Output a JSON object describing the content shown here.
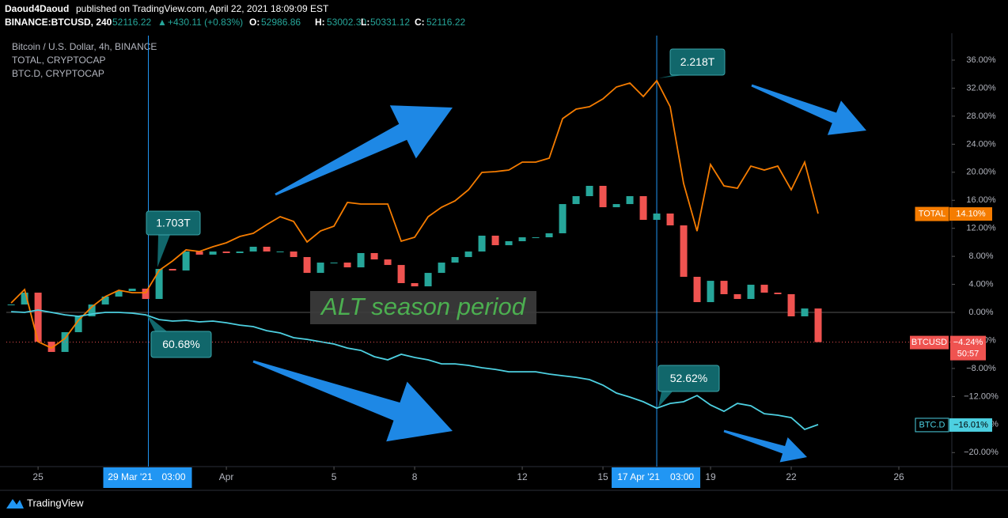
{
  "header": {
    "author": "Daoud4Daoud",
    "published": "published on TradingView.com, April 22, 2021 18:09:09 EST",
    "symbol": "BINANCE:BTCUSD, 240",
    "last": "52116.22",
    "arrow": "▲",
    "change": "+430.11 (+0.83%)",
    "ohlc": [
      {
        "label": "O:",
        "value": "52986.86"
      },
      {
        "label": "H:",
        "value": "53002.30"
      },
      {
        "label": "L:",
        "value": "50331.12"
      },
      {
        "label": "C:",
        "value": "52116.22"
      }
    ]
  },
  "footer": {
    "brand": "TradingView"
  },
  "chart_data": {
    "type": "line",
    "legend": [
      "Bitcoin / U.S. Dollar, 4h, BINANCE",
      "TOTAL, CRYPTOCAP",
      "BTC.D, CRYPTOCAP"
    ],
    "x": [
      -1,
      -0.5,
      0,
      0.5,
      1,
      1.5,
      2,
      2.5,
      3,
      3.5,
      4,
      4.5,
      5,
      5.5,
      6,
      6.5,
      7,
      7.5,
      8,
      8.5,
      9,
      9.5,
      10,
      10.5,
      11,
      11.5,
      12,
      12.5,
      13,
      13.5,
      14,
      14.5,
      15,
      15.5,
      16,
      16.5,
      17,
      17.5,
      18,
      18.5,
      19,
      19.5,
      20,
      20.5,
      21,
      21.5,
      22,
      22.5,
      23,
      23.5,
      24,
      24.5,
      25,
      25.5,
      26,
      26.5,
      27,
      27.5,
      28,
      28.5,
      29
    ],
    "xlim": [
      -1.18,
      33.97
    ],
    "xticks": [
      {
        "value": 0,
        "label": "25"
      },
      {
        "value": 7,
        "label": "Apr"
      },
      {
        "value": 11,
        "label": "5"
      },
      {
        "value": 14,
        "label": "8"
      },
      {
        "value": 18,
        "label": "12"
      },
      {
        "value": 21,
        "label": "15"
      },
      {
        "value": 25,
        "label": "19"
      },
      {
        "value": 28,
        "label": "22"
      },
      {
        "value": 32,
        "label": "26"
      }
    ],
    "ylim": [
      -22,
      39.5
    ],
    "yticks": [
      {
        "value": 36,
        "label": "36.00%"
      },
      {
        "value": 32,
        "label": "32.00%"
      },
      {
        "value": 28,
        "label": "28.00%"
      },
      {
        "value": 24,
        "label": "24.00%"
      },
      {
        "value": 20,
        "label": "20.00%"
      },
      {
        "value": 16,
        "label": "16.00%"
      },
      {
        "value": 12,
        "label": "12.00%"
      },
      {
        "value": 8,
        "label": "8.00%"
      },
      {
        "value": 4,
        "label": "4.00%"
      },
      {
        "value": 0,
        "label": "0.00%"
      },
      {
        "value": -4,
        "label": "−4.00%"
      },
      {
        "value": -8,
        "label": "−8.00%"
      },
      {
        "value": -12,
        "label": "−12.00%"
      },
      {
        "value": -16,
        "label": "−16.00%"
      },
      {
        "value": -20,
        "label": "−20.00%"
      }
    ],
    "grid": false,
    "series": [
      {
        "name": "BTCUSD",
        "style": "candlestick",
        "color": "#ef5350",
        "up_color": "#26a69a",
        "last_label": "−4.24%",
        "countdown": "50:57",
        "values": [
          1.13,
          2.82,
          -4.18,
          -5.64,
          -2.82,
          -0.56,
          1.13,
          2.26,
          3.05,
          3.39,
          1.92,
          6.21,
          5.98,
          8.69,
          8.24,
          8.69,
          8.47,
          8.69,
          9.37,
          8.69,
          8.69,
          7.9,
          5.64,
          7.11,
          7.11,
          6.43,
          8.47,
          7.56,
          6.77,
          4.18,
          3.72,
          5.64,
          7.11,
          7.9,
          8.69,
          10.95,
          9.59,
          10.16,
          10.72,
          10.72,
          11.29,
          15.46,
          16.59,
          18.06,
          15.01,
          15.46,
          16.59,
          13.21,
          14.11,
          12.42,
          5.08,
          1.47,
          4.51,
          2.6,
          1.92,
          3.95,
          2.82,
          2.6,
          -0.56,
          0.56,
          -4.24
        ]
      },
      {
        "name": "TOTAL",
        "style": "line",
        "color": "#f57c00",
        "last_label": "14.10%",
        "values": [
          1.35,
          3.27,
          -4.18,
          -5.08,
          -3.72,
          -1.13,
          0.79,
          2.26,
          3.16,
          2.82,
          2.82,
          5.98,
          7.34,
          8.92,
          8.69,
          9.37,
          9.93,
          10.84,
          11.29,
          12.53,
          13.66,
          12.98,
          10.05,
          11.63,
          12.3,
          15.69,
          15.46,
          15.46,
          15.46,
          10.16,
          10.72,
          13.66,
          15.01,
          15.91,
          17.49,
          19.98,
          20.09,
          20.32,
          21.44,
          21.44,
          22.01,
          27.65,
          29.01,
          29.35,
          30.47,
          32.17,
          32.73,
          30.81,
          33.07,
          29.35,
          18.4,
          11.6,
          21.11,
          18.06,
          17.72,
          20.88,
          20.32,
          20.88,
          17.49,
          21.44,
          14.1
        ]
      },
      {
        "name": "BTC.D",
        "style": "line",
        "color": "#4dd0e1",
        "last_label": "−16.01%",
        "values": [
          0.11,
          0,
          0.34,
          0,
          -0.34,
          -0.56,
          -0.23,
          0,
          0,
          -0.11,
          -0.34,
          -1.02,
          -1.24,
          -1.13,
          -1.35,
          -1.24,
          -1.47,
          -1.81,
          -2.03,
          -2.6,
          -2.93,
          -3.61,
          -3.84,
          -4.18,
          -4.51,
          -5.08,
          -5.42,
          -6.32,
          -6.77,
          -5.98,
          -6.43,
          -6.77,
          -7.34,
          -7.34,
          -7.56,
          -7.9,
          -8.13,
          -8.47,
          -8.47,
          -8.47,
          -8.8,
          -9.03,
          -9.26,
          -9.59,
          -10.38,
          -11.51,
          -12.08,
          -12.75,
          -13.66,
          -12.98,
          -12.75,
          -11.85,
          -13.21,
          -14.11,
          -12.98,
          -13.32,
          -14.45,
          -14.67,
          -15.01,
          -16.7,
          -16.01
        ]
      }
    ],
    "crosshairs": [
      {
        "x": 4.1,
        "date": "29 Mar '21",
        "time": "03:00"
      },
      {
        "x": 23.0,
        "date": "17 Apr '21",
        "time": "03:00"
      }
    ],
    "annotations": [
      "1.703T",
      "60.68%",
      "2.218T",
      "52.62%",
      "ALT season period"
    ]
  }
}
